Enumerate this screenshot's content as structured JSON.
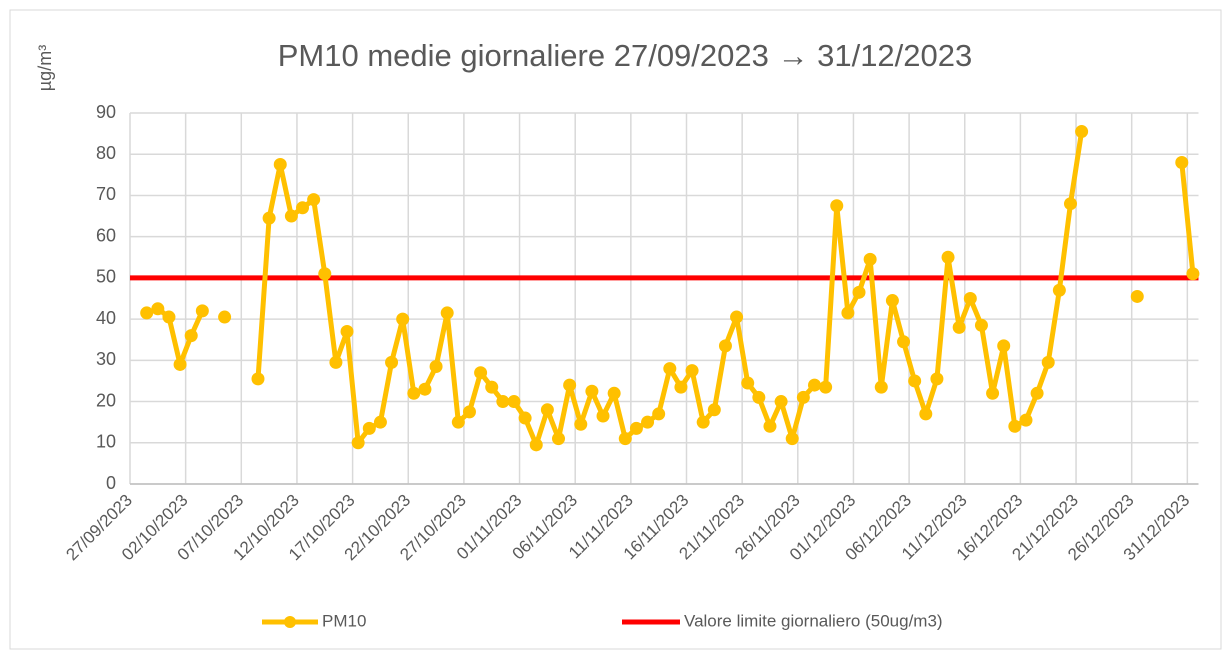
{
  "chart_data": {
    "type": "line",
    "title": "PM10 medie giornaliere 27/09/2023 → 31/12/2023",
    "y_axis_label": "µg/m³",
    "categories": [
      "27/09/2023",
      null,
      null,
      null,
      null,
      "02/10/2023",
      null,
      null,
      null,
      null,
      "07/10/2023",
      null,
      null,
      null,
      null,
      "12/10/2023",
      null,
      null,
      null,
      null,
      "17/10/2023",
      null,
      null,
      null,
      null,
      "22/10/2023",
      null,
      null,
      null,
      null,
      "27/10/2023",
      null,
      null,
      null,
      null,
      "01/11/2023",
      null,
      null,
      null,
      null,
      "06/11/2023",
      null,
      null,
      null,
      null,
      "11/11/2023",
      null,
      null,
      null,
      null,
      "16/11/2023",
      null,
      null,
      null,
      null,
      "21/11/2023",
      null,
      null,
      null,
      null,
      "26/11/2023",
      null,
      null,
      null,
      null,
      "01/12/2023",
      null,
      null,
      null,
      null,
      "06/12/2023",
      null,
      null,
      null,
      null,
      "11/12/2023",
      null,
      null,
      null,
      null,
      "16/12/2023",
      null,
      null,
      null,
      null,
      "21/12/2023",
      null,
      null,
      null,
      null,
      "26/12/2023",
      null,
      null,
      null,
      null,
      "31/12/2023"
    ],
    "series": [
      {
        "name": "PM10",
        "color": "#ffc000",
        "values": [
          null,
          41.5,
          42.5,
          40.5,
          29,
          36,
          42,
          null,
          40.5,
          null,
          null,
          25.5,
          64.5,
          77.5,
          65,
          67,
          69,
          51,
          29.5,
          37,
          10,
          13.5,
          15,
          29.5,
          40,
          22,
          23,
          28.5,
          41.5,
          15,
          17.5,
          27,
          23.5,
          20,
          20,
          16,
          9.5,
          18,
          11,
          24,
          14.5,
          22.5,
          16.5,
          22,
          11,
          13.5,
          15,
          17,
          28,
          23.5,
          27.5,
          15,
          18,
          33.5,
          40.5,
          24.5,
          21,
          14,
          20,
          11,
          21,
          24,
          23.5,
          67.5,
          41.5,
          46.5,
          54.5,
          23.5,
          44.5,
          34.5,
          25,
          17,
          25.5,
          55,
          38,
          45,
          38.5,
          22,
          33.5,
          14,
          15.5,
          22,
          29.5,
          47,
          68,
          85.5,
          null,
          null,
          null,
          null,
          45.5,
          null,
          null,
          null,
          78,
          51
        ]
      }
    ],
    "limit": {
      "name": "Valore limite giornaliero (50ug/m3)",
      "value": 50,
      "color": "#ff0000"
    },
    "ylim": [
      0,
      90
    ],
    "yticks": [
      0,
      10,
      20,
      30,
      40,
      50,
      60,
      70,
      80,
      90
    ],
    "grid": true
  }
}
